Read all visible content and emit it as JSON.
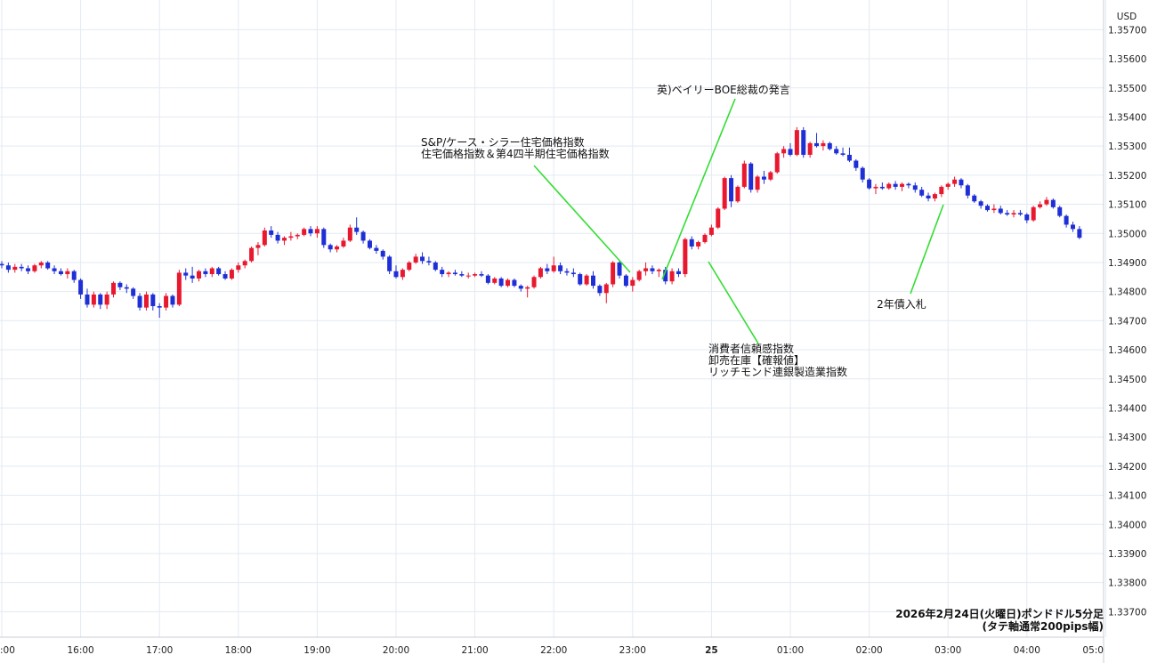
{
  "chart_data": {
    "type": "candlestick",
    "currency_label": "USD",
    "colors": {
      "up": "#e8182f",
      "down": "#1f2fd6",
      "grid": "#e3eaf2",
      "annotation_line": "#33dd33"
    },
    "grid": true,
    "ylim": [
      1.33665,
      1.35795
    ],
    "y_ticks": [
      "1.33700",
      "1.33800",
      "1.33900",
      "1.34000",
      "1.34100",
      "1.34200",
      "1.34300",
      "1.34400",
      "1.34500",
      "1.34600",
      "1.34700",
      "1.34800",
      "1.34900",
      "1.35000",
      "1.35100",
      "1.35200",
      "1.35300",
      "1.35400",
      "1.35500",
      "1.35600",
      "1.35700"
    ],
    "x_ticks": [
      {
        "label": ":00",
        "bold": false
      },
      {
        "label": "16:00",
        "bold": false
      },
      {
        "label": "17:00",
        "bold": false
      },
      {
        "label": "18:00",
        "bold": false
      },
      {
        "label": "19:00",
        "bold": false
      },
      {
        "label": "20:00",
        "bold": false
      },
      {
        "label": "21:00",
        "bold": false
      },
      {
        "label": "22:00",
        "bold": false
      },
      {
        "label": "23:00",
        "bold": false
      },
      {
        "label": "25",
        "bold": true
      },
      {
        "label": "01:00",
        "bold": false
      },
      {
        "label": "02:00",
        "bold": false
      },
      {
        "label": "03:00",
        "bold": false
      },
      {
        "label": "04:00",
        "bold": false
      },
      {
        "label": "05:0",
        "bold": false
      }
    ],
    "x_tick_hours": [
      15,
      16,
      17,
      18,
      19,
      20,
      21,
      22,
      23,
      24,
      25,
      26,
      27,
      28,
      29
    ],
    "candles": [
      [
        1.34895,
        1.34905,
        1.3488,
        1.3489
      ],
      [
        1.3489,
        1.349,
        1.34865,
        1.34875
      ],
      [
        1.34875,
        1.34895,
        1.34865,
        1.34885
      ],
      [
        1.34885,
        1.34895,
        1.3487,
        1.3488
      ],
      [
        1.3488,
        1.3489,
        1.3486,
        1.3487
      ],
      [
        1.3487,
        1.34895,
        1.34865,
        1.3489
      ],
      [
        1.3489,
        1.34905,
        1.3488,
        1.349
      ],
      [
        1.349,
        1.34905,
        1.34875,
        1.3488
      ],
      [
        1.3488,
        1.3489,
        1.3486,
        1.3487
      ],
      [
        1.3487,
        1.3488,
        1.34855,
        1.3486
      ],
      [
        1.3486,
        1.3488,
        1.34845,
        1.3487
      ],
      [
        1.3487,
        1.34875,
        1.3483,
        1.3484
      ],
      [
        1.3484,
        1.34845,
        1.34775,
        1.3479
      ],
      [
        1.3479,
        1.3481,
        1.34745,
        1.34755
      ],
      [
        1.34755,
        1.348,
        1.34745,
        1.3479
      ],
      [
        1.3479,
        1.34795,
        1.3474,
        1.34755
      ],
      [
        1.34755,
        1.348,
        1.3474,
        1.3479
      ],
      [
        1.3479,
        1.34835,
        1.3478,
        1.3483
      ],
      [
        1.3483,
        1.34835,
        1.34805,
        1.34815
      ],
      [
        1.34815,
        1.34825,
        1.34795,
        1.3481
      ],
      [
        1.3481,
        1.34815,
        1.34775,
        1.34785
      ],
      [
        1.34785,
        1.34795,
        1.34735,
        1.34745
      ],
      [
        1.34745,
        1.348,
        1.34735,
        1.3479
      ],
      [
        1.3479,
        1.34795,
        1.34735,
        1.3475
      ],
      [
        1.3475,
        1.3476,
        1.3471,
        1.34745
      ],
      [
        1.34745,
        1.34795,
        1.34735,
        1.34785
      ],
      [
        1.34785,
        1.3479,
        1.34745,
        1.34755
      ],
      [
        1.34755,
        1.34875,
        1.3475,
        1.34865
      ],
      [
        1.34865,
        1.3488,
        1.3484,
        1.34855
      ],
      [
        1.34855,
        1.34885,
        1.3483,
        1.34845
      ],
      [
        1.34845,
        1.34875,
        1.34835,
        1.3487
      ],
      [
        1.3487,
        1.3488,
        1.3485,
        1.3486
      ],
      [
        1.3486,
        1.34885,
        1.3485,
        1.3488
      ],
      [
        1.3488,
        1.34885,
        1.34855,
        1.3486
      ],
      [
        1.3486,
        1.3487,
        1.3484,
        1.34845
      ],
      [
        1.34845,
        1.3488,
        1.3484,
        1.34875
      ],
      [
        1.34875,
        1.349,
        1.34865,
        1.3489
      ],
      [
        1.3489,
        1.3491,
        1.3488,
        1.34905
      ],
      [
        1.34905,
        1.34955,
        1.349,
        1.3495
      ],
      [
        1.3495,
        1.3497,
        1.34925,
        1.3496
      ],
      [
        1.3496,
        1.3502,
        1.34955,
        1.3501
      ],
      [
        1.3501,
        1.35025,
        1.34985,
        1.34995
      ],
      [
        1.34995,
        1.35005,
        1.34965,
        1.34975
      ],
      [
        1.34975,
        1.3499,
        1.3496,
        1.34985
      ],
      [
        1.34985,
        1.35005,
        1.34975,
        1.3499
      ],
      [
        1.3499,
        1.35,
        1.3498,
        1.34995
      ],
      [
        1.34995,
        1.3502,
        1.3499,
        1.35015
      ],
      [
        1.35015,
        1.35025,
        1.3499,
        1.35
      ],
      [
        1.35,
        1.35025,
        1.34985,
        1.35015
      ],
      [
        1.35015,
        1.3502,
        1.3495,
        1.3496
      ],
      [
        1.3496,
        1.34965,
        1.34935,
        1.34945
      ],
      [
        1.34945,
        1.3496,
        1.34935,
        1.34955
      ],
      [
        1.34955,
        1.34985,
        1.3495,
        1.34975
      ],
      [
        1.34975,
        1.3503,
        1.3497,
        1.3502
      ],
      [
        1.3502,
        1.35055,
        1.34995,
        1.35005
      ],
      [
        1.35005,
        1.3501,
        1.34965,
        1.34975
      ],
      [
        1.34975,
        1.3498,
        1.34945,
        1.3495
      ],
      [
        1.3495,
        1.3496,
        1.3493,
        1.3494
      ],
      [
        1.3494,
        1.34945,
        1.3491,
        1.3492
      ],
      [
        1.3492,
        1.34925,
        1.3486,
        1.3487
      ],
      [
        1.3487,
        1.3489,
        1.34845,
        1.3485
      ],
      [
        1.3485,
        1.3488,
        1.3484,
        1.34875
      ],
      [
        1.34875,
        1.34905,
        1.3487,
        1.349
      ],
      [
        1.349,
        1.3493,
        1.34895,
        1.3492
      ],
      [
        1.3492,
        1.34935,
        1.34895,
        1.34905
      ],
      [
        1.34905,
        1.3492,
        1.3489,
        1.349
      ],
      [
        1.349,
        1.34905,
        1.3487,
        1.34875
      ],
      [
        1.34875,
        1.34885,
        1.3485,
        1.3486
      ],
      [
        1.3486,
        1.3487,
        1.3485,
        1.34865
      ],
      [
        1.34865,
        1.34875,
        1.34855,
        1.3486
      ],
      [
        1.3486,
        1.3487,
        1.3485,
        1.34855
      ],
      [
        1.34855,
        1.34865,
        1.34845,
        1.34855
      ],
      [
        1.34855,
        1.34865,
        1.3485,
        1.3486
      ],
      [
        1.3486,
        1.3487,
        1.3485,
        1.34855
      ],
      [
        1.34855,
        1.3486,
        1.34825,
        1.3483
      ],
      [
        1.3483,
        1.3485,
        1.34825,
        1.34845
      ],
      [
        1.34845,
        1.3485,
        1.34815,
        1.3482
      ],
      [
        1.3482,
        1.34845,
        1.34815,
        1.3484
      ],
      [
        1.3484,
        1.34845,
        1.34815,
        1.3482
      ],
      [
        1.3482,
        1.34825,
        1.348,
        1.3481
      ],
      [
        1.3481,
        1.3482,
        1.3478,
        1.34815
      ],
      [
        1.34815,
        1.34855,
        1.3481,
        1.3485
      ],
      [
        1.3485,
        1.34885,
        1.34845,
        1.3488
      ],
      [
        1.3488,
        1.34895,
        1.3486,
        1.3487
      ],
      [
        1.3487,
        1.3492,
        1.34865,
        1.3489
      ],
      [
        1.3489,
        1.349,
        1.3486,
        1.3487
      ],
      [
        1.3487,
        1.3488,
        1.34855,
        1.34865
      ],
      [
        1.34865,
        1.3488,
        1.3485,
        1.3486
      ],
      [
        1.3486,
        1.34865,
        1.3482,
        1.34825
      ],
      [
        1.34825,
        1.3486,
        1.3482,
        1.34855
      ],
      [
        1.34855,
        1.3487,
        1.3481,
        1.3482
      ],
      [
        1.3482,
        1.34825,
        1.34785,
        1.34795
      ],
      [
        1.34795,
        1.3483,
        1.3476,
        1.34825
      ],
      [
        1.34825,
        1.34905,
        1.34815,
        1.349
      ],
      [
        1.349,
        1.34905,
        1.34845,
        1.34855
      ],
      [
        1.34855,
        1.3486,
        1.34815,
        1.3482
      ],
      [
        1.3482,
        1.3485,
        1.348,
        1.3484
      ],
      [
        1.3484,
        1.34875,
        1.34835,
        1.3487
      ],
      [
        1.3487,
        1.349,
        1.34855,
        1.3488
      ],
      [
        1.3488,
        1.3489,
        1.3486,
        1.3487
      ],
      [
        1.3487,
        1.3488,
        1.3485,
        1.34875
      ],
      [
        1.34875,
        1.34885,
        1.34825,
        1.34835
      ],
      [
        1.34835,
        1.3488,
        1.34825,
        1.3487
      ],
      [
        1.3487,
        1.3488,
        1.3485,
        1.3486
      ],
      [
        1.3486,
        1.34985,
        1.3485,
        1.3498
      ],
      [
        1.3498,
        1.3499,
        1.34945,
        1.34955
      ],
      [
        1.34955,
        1.34975,
        1.34945,
        1.3497
      ],
      [
        1.3497,
        1.35,
        1.34965,
        1.34995
      ],
      [
        1.34995,
        1.3503,
        1.3499,
        1.3502
      ],
      [
        1.3502,
        1.3509,
        1.35015,
        1.35085
      ],
      [
        1.35085,
        1.35195,
        1.3508,
        1.3519
      ],
      [
        1.3519,
        1.352,
        1.3509,
        1.3511
      ],
      [
        1.3511,
        1.35165,
        1.35105,
        1.3516
      ],
      [
        1.3516,
        1.3525,
        1.35155,
        1.3524
      ],
      [
        1.3524,
        1.35245,
        1.3514,
        1.3515
      ],
      [
        1.3515,
        1.352,
        1.3514,
        1.35195
      ],
      [
        1.35195,
        1.35215,
        1.3517,
        1.35185
      ],
      [
        1.35185,
        1.35215,
        1.3518,
        1.3521
      ],
      [
        1.3521,
        1.3528,
        1.35205,
        1.35275
      ],
      [
        1.35275,
        1.353,
        1.3526,
        1.3529
      ],
      [
        1.3529,
        1.3531,
        1.35265,
        1.3527
      ],
      [
        1.3527,
        1.35365,
        1.35265,
        1.35355
      ],
      [
        1.35355,
        1.35365,
        1.3526,
        1.3527
      ],
      [
        1.3527,
        1.35315,
        1.3526,
        1.3531
      ],
      [
        1.3531,
        1.35345,
        1.35295,
        1.353
      ],
      [
        1.353,
        1.3532,
        1.35285,
        1.3531
      ],
      [
        1.3531,
        1.35315,
        1.35285,
        1.3529
      ],
      [
        1.3529,
        1.353,
        1.3527,
        1.35275
      ],
      [
        1.35275,
        1.35295,
        1.35265,
        1.3527
      ],
      [
        1.3527,
        1.35295,
        1.35245,
        1.3525
      ],
      [
        1.3525,
        1.35255,
        1.35215,
        1.35225
      ],
      [
        1.35225,
        1.3523,
        1.35175,
        1.35185
      ],
      [
        1.35185,
        1.3519,
        1.3515,
        1.35155
      ],
      [
        1.35155,
        1.3517,
        1.35135,
        1.3516
      ],
      [
        1.3516,
        1.35175,
        1.3515,
        1.35155
      ],
      [
        1.35155,
        1.35175,
        1.3515,
        1.3517
      ],
      [
        1.3517,
        1.3518,
        1.3515,
        1.3516
      ],
      [
        1.3516,
        1.35175,
        1.35145,
        1.3517
      ],
      [
        1.3517,
        1.35175,
        1.35155,
        1.35165
      ],
      [
        1.35165,
        1.35175,
        1.3514,
        1.3515
      ],
      [
        1.3515,
        1.3516,
        1.35125,
        1.3513
      ],
      [
        1.3513,
        1.3514,
        1.3511,
        1.3512
      ],
      [
        1.3512,
        1.3514,
        1.3511,
        1.35135
      ],
      [
        1.35135,
        1.35165,
        1.35125,
        1.3516
      ],
      [
        1.3516,
        1.35175,
        1.3515,
        1.3517
      ],
      [
        1.3517,
        1.35195,
        1.3516,
        1.35185
      ],
      [
        1.35185,
        1.3519,
        1.35155,
        1.35165
      ],
      [
        1.35165,
        1.3517,
        1.3512,
        1.3513
      ],
      [
        1.3513,
        1.35135,
        1.35105,
        1.3511
      ],
      [
        1.3511,
        1.35115,
        1.35085,
        1.35095
      ],
      [
        1.35095,
        1.351,
        1.35075,
        1.3508
      ],
      [
        1.3508,
        1.351,
        1.3507,
        1.35085
      ],
      [
        1.35085,
        1.35095,
        1.35065,
        1.3507
      ],
      [
        1.3507,
        1.3508,
        1.3506,
        1.35065
      ],
      [
        1.35065,
        1.3508,
        1.35055,
        1.3507
      ],
      [
        1.3507,
        1.3508,
        1.3506,
        1.35065
      ],
      [
        1.35065,
        1.3507,
        1.35035,
        1.35045
      ],
      [
        1.35045,
        1.35095,
        1.3504,
        1.3509
      ],
      [
        1.3509,
        1.3511,
        1.35085,
        1.351
      ],
      [
        1.351,
        1.35125,
        1.35095,
        1.35115
      ],
      [
        1.35115,
        1.3512,
        1.35085,
        1.3509
      ],
      [
        1.3509,
        1.35095,
        1.35055,
        1.3506
      ],
      [
        1.3506,
        1.35065,
        1.3502,
        1.3503
      ],
      [
        1.3503,
        1.3504,
        1.35005,
        1.35015
      ],
      [
        1.35015,
        1.35025,
        1.3498,
        1.34985
      ]
    ],
    "annotations": [
      {
        "lines": [
          "英)ベイリーBOE総裁の発言"
        ],
        "text_anchor": "start"
      },
      {
        "lines": [
          "S&P/ケース・シラー住宅価格指数",
          "住宅価格指数＆第4四半期住宅価格指数"
        ],
        "text_anchor": "start"
      },
      {
        "lines": [
          "消費者信頼感指数",
          "卸売在庫【確報値】",
          "リッチモンド連銀製造業指数"
        ],
        "text_anchor": "start"
      },
      {
        "lines": [
          "2年債入札"
        ],
        "text_anchor": "middle"
      }
    ],
    "caption": [
      "2026年2月24日(火曜日)ポンドドル5分足",
      "(タテ軸通常200pips幅)"
    ]
  }
}
